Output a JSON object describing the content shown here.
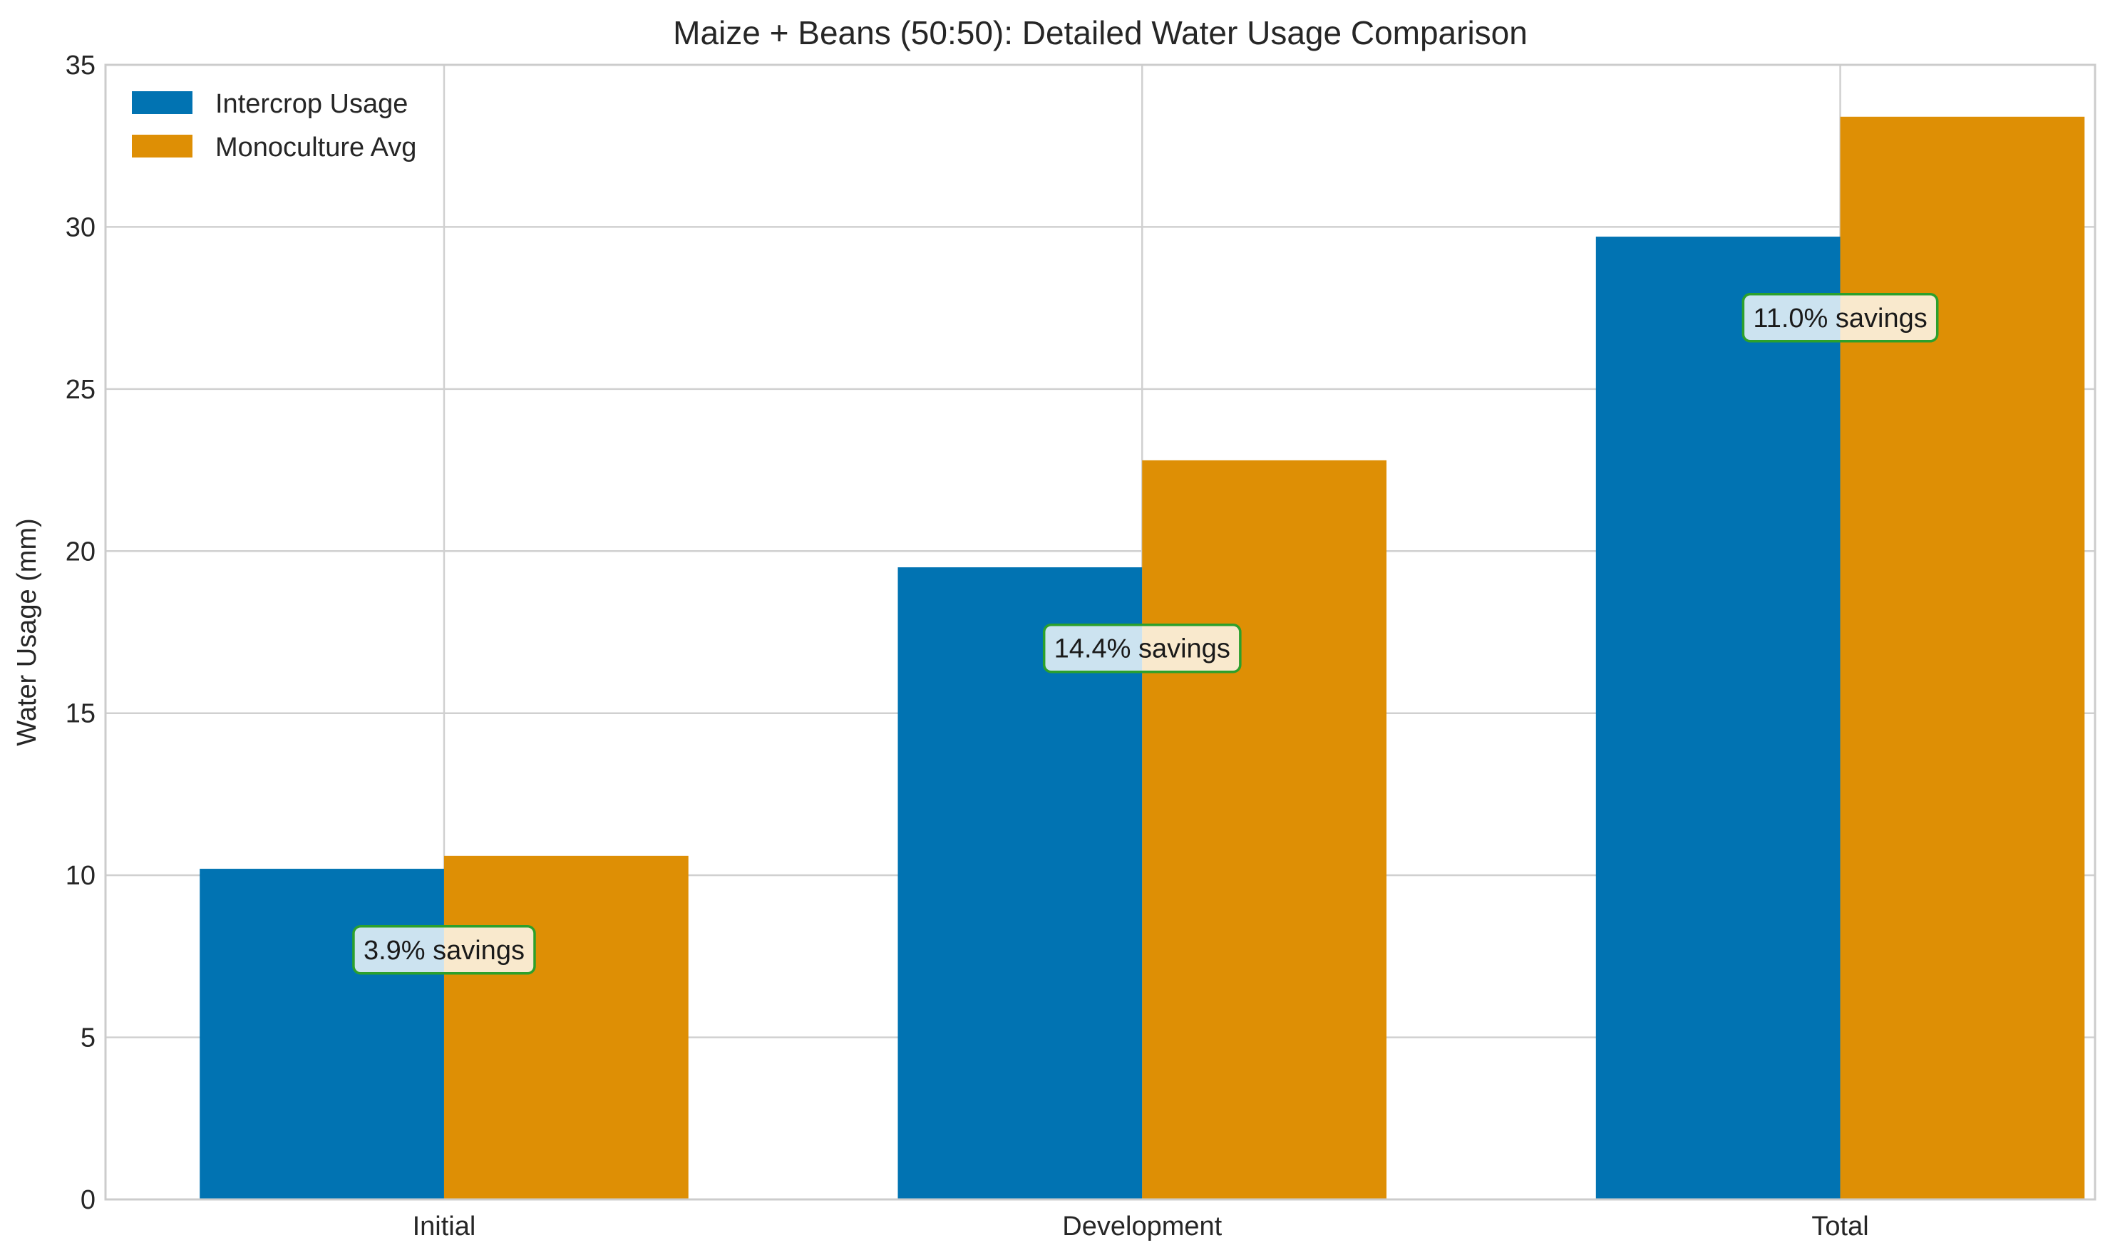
{
  "chart_data": {
    "type": "bar",
    "title": "Maize + Beans (50:50): Detailed Water Usage Comparison",
    "xlabel": "",
    "ylabel": "Water Usage (mm)",
    "categories": [
      "Initial",
      "Development",
      "Total"
    ],
    "series": [
      {
        "name": "Intercrop Usage",
        "color": "#0173b2",
        "values": [
          10.2,
          19.5,
          29.7
        ]
      },
      {
        "name": "Monoculture Avg",
        "color": "#de8f05",
        "values": [
          10.6,
          22.8,
          33.4
        ]
      }
    ],
    "annotations": [
      {
        "category": "Initial",
        "y": 7.7,
        "text": "3.9% savings"
      },
      {
        "category": "Development",
        "y": 17.0,
        "text": "14.4% savings"
      },
      {
        "category": "Total",
        "y": 27.2,
        "text": "11.0% savings"
      }
    ],
    "annotation_border_color": "#2ca02c",
    "ylim": [
      0,
      35
    ],
    "yticks": [
      0,
      5,
      10,
      15,
      20,
      25,
      30,
      35
    ],
    "grid": true,
    "legend_position": "upper-left"
  }
}
